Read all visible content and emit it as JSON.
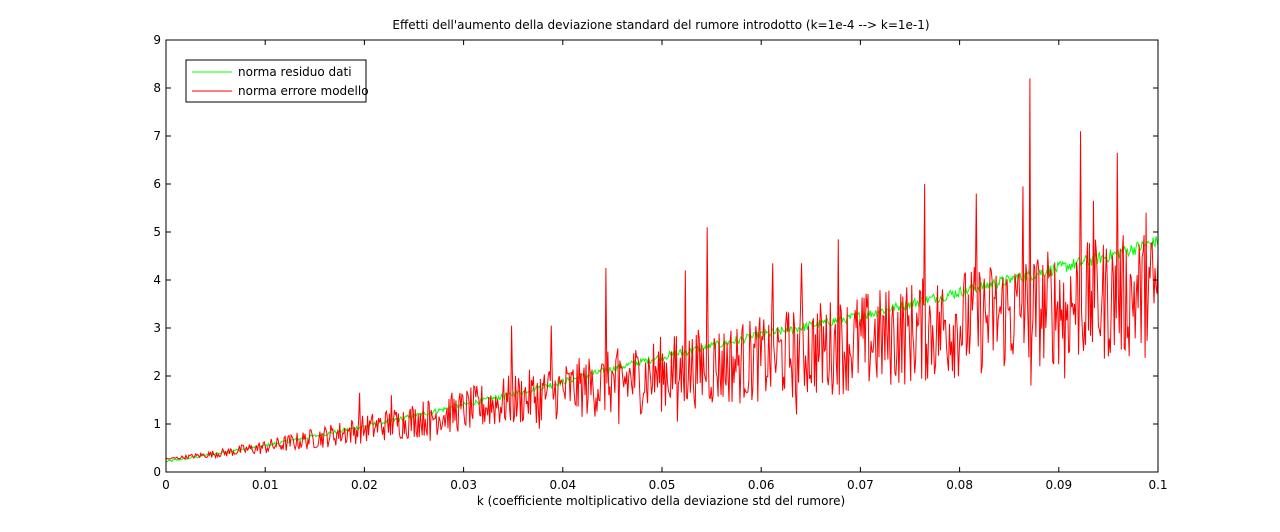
{
  "chart_data": {
    "type": "line",
    "title": "Effetti dell'aumento della deviazione standard del rumore introdotto (k=1e-4 --> k=1e-1)",
    "xlabel": "k (coefficiente moltiplicativo della deviazione std del rumore)",
    "ylabel": "",
    "xlim": [
      0,
      0.1
    ],
    "ylim": [
      0,
      9
    ],
    "xticks": [
      0,
      0.01,
      0.02,
      0.03,
      0.04,
      0.05,
      0.06,
      0.07,
      0.08,
      0.09,
      0.1
    ],
    "xtick_labels": [
      "0",
      "0.01",
      "0.02",
      "0.03",
      "0.04",
      "0.05",
      "0.06",
      "0.07",
      "0.08",
      "0.09",
      "0.1"
    ],
    "yticks": [
      0,
      1,
      2,
      3,
      4,
      5,
      6,
      7,
      8,
      9
    ],
    "ytick_labels": [
      "0",
      "1",
      "2",
      "3",
      "4",
      "5",
      "6",
      "7",
      "8",
      "9"
    ],
    "grid": false,
    "legend_position": "top-left",
    "series": [
      {
        "name": "norma residuo dati",
        "color": "#00ff00",
        "x": [
          0.0001,
          0.005,
          0.01,
          0.015,
          0.02,
          0.025,
          0.03,
          0.035,
          0.04,
          0.045,
          0.05,
          0.055,
          0.06,
          0.065,
          0.07,
          0.075,
          0.08,
          0.085,
          0.09,
          0.095,
          0.1
        ],
        "y": [
          0.22,
          0.38,
          0.55,
          0.75,
          0.95,
          1.17,
          1.4,
          1.62,
          1.88,
          2.15,
          2.4,
          2.62,
          2.85,
          3.05,
          3.25,
          3.5,
          3.75,
          4.0,
          4.25,
          4.5,
          4.8
        ]
      },
      {
        "name": "norma errore modello",
        "color": "#ff0000",
        "x": [
          0.0001,
          0.005,
          0.01,
          0.015,
          0.02,
          0.025,
          0.03,
          0.035,
          0.04,
          0.045,
          0.05,
          0.055,
          0.06,
          0.065,
          0.07,
          0.075,
          0.08,
          0.085,
          0.09,
          0.095,
          0.1
        ],
        "y": [
          0.27,
          0.38,
          0.52,
          0.7,
          0.9,
          1.08,
          1.28,
          1.5,
          1.7,
          1.85,
          2.05,
          2.2,
          2.35,
          2.55,
          2.7,
          2.9,
          3.1,
          3.3,
          3.45,
          3.6,
          3.75
        ],
        "spread": [
          0.02,
          0.08,
          0.15,
          0.22,
          0.3,
          0.38,
          0.45,
          0.55,
          0.6,
          0.7,
          0.8,
          0.85,
          0.9,
          1.0,
          1.05,
          1.1,
          1.15,
          1.2,
          1.25,
          1.3,
          1.35
        ],
        "peaks": [
          {
            "x": 0.0871,
            "y": 8.2
          },
          {
            "x": 0.0922,
            "y": 7.1
          },
          {
            "x": 0.0959,
            "y": 6.65
          },
          {
            "x": 0.0765,
            "y": 6.0
          },
          {
            "x": 0.0864,
            "y": 5.95
          },
          {
            "x": 0.0817,
            "y": 5.8
          },
          {
            "x": 0.0935,
            "y": 5.65
          },
          {
            "x": 0.0546,
            "y": 5.1
          },
          {
            "x": 0.0988,
            "y": 5.4
          },
          {
            "x": 0.0678,
            "y": 4.85
          },
          {
            "x": 0.0641,
            "y": 4.35
          },
          {
            "x": 0.0443,
            "y": 4.25
          },
          {
            "x": 0.0612,
            "y": 4.35
          },
          {
            "x": 0.0524,
            "y": 4.2
          },
          {
            "x": 0.0348,
            "y": 3.05
          },
          {
            "x": 0.0388,
            "y": 3.05
          },
          {
            "x": 0.0195,
            "y": 1.65
          },
          {
            "x": 0.0227,
            "y": 1.6
          }
        ],
        "troughs": [
          {
            "x": 0.0871,
            "y": 1.8
          },
          {
            "x": 0.0905,
            "y": 1.95
          },
          {
            "x": 0.0635,
            "y": 1.2
          },
          {
            "x": 0.0515,
            "y": 1.05
          },
          {
            "x": 0.0455,
            "y": 1.0
          },
          {
            "x": 0.0375,
            "y": 0.9
          },
          {
            "x": 0.0265,
            "y": 0.65
          }
        ]
      }
    ]
  }
}
